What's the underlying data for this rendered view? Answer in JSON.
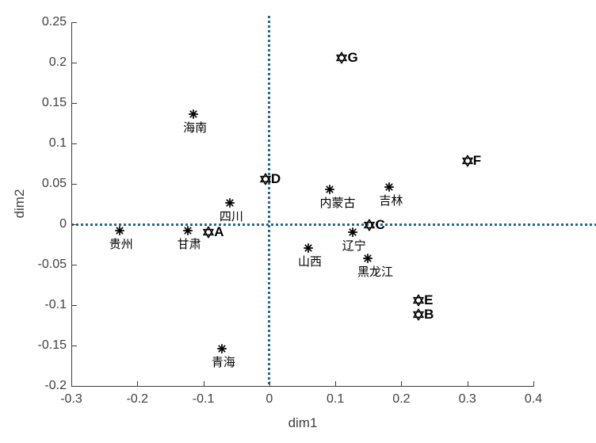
{
  "chart_data": {
    "type": "scatter",
    "title": "",
    "xlabel": "dim1",
    "ylabel": "dim2",
    "xlim": [
      -0.3,
      0.4
    ],
    "ylim": [
      -0.2,
      0.25
    ],
    "x_tick_values": [
      -0.3,
      -0.2,
      -0.1,
      0,
      0.1,
      0.2,
      0.3,
      0.4
    ],
    "x_tick_labels": [
      "-0.3",
      "-0.2",
      "-0.1",
      "0",
      "0.1",
      "0.2",
      "0.3",
      "0.4"
    ],
    "y_tick_values": [
      -0.2,
      -0.15,
      -0.1,
      -0.05,
      0,
      0.05,
      0.1,
      0.15,
      0.2,
      0.25
    ],
    "y_tick_labels": [
      "-0.2",
      "-0.15",
      "-0.1",
      "-0.05",
      "0",
      "0.05",
      "0.1",
      "0.15",
      "0.2",
      "0.25"
    ],
    "grid": false,
    "legend": null,
    "reference_lines": [
      {
        "axis": "vertical",
        "value": 0,
        "style": "dotted"
      },
      {
        "axis": "horizontal",
        "value": 0,
        "style": "dotted"
      }
    ],
    "series": [
      {
        "name": "provinces",
        "marker": "asterisk",
        "label_position": "below",
        "points": [
          {
            "label": "海南",
            "x": -0.115,
            "y": 0.136
          },
          {
            "label": "贵州",
            "x": -0.227,
            "y": -0.008
          },
          {
            "label": "甘肃",
            "x": -0.124,
            "y": -0.008
          },
          {
            "label": "四川",
            "x": -0.06,
            "y": 0.026
          },
          {
            "label": "青海",
            "x": -0.072,
            "y": -0.154
          },
          {
            "label": "内蒙古",
            "x": 0.092,
            "y": 0.043
          },
          {
            "label": "吉林",
            "x": 0.182,
            "y": 0.046
          },
          {
            "label": "辽宁",
            "x": 0.126,
            "y": -0.01
          },
          {
            "label": "山西",
            "x": 0.059,
            "y": -0.029
          },
          {
            "label": "黑龙江",
            "x": 0.149,
            "y": -0.042
          }
        ]
      },
      {
        "name": "letter-points",
        "marker": "hexagram",
        "label_position": "right",
        "points": [
          {
            "label": "A",
            "x": -0.092,
            "y": -0.01
          },
          {
            "label": "B",
            "x": 0.226,
            "y": -0.112
          },
          {
            "label": "C",
            "x": 0.152,
            "y": -0.001
          },
          {
            "label": "D",
            "x": -0.006,
            "y": 0.056
          },
          {
            "label": "E",
            "x": 0.226,
            "y": -0.094
          },
          {
            "label": "F",
            "x": 0.3,
            "y": 0.078
          },
          {
            "label": "G",
            "x": 0.11,
            "y": 0.206
          }
        ]
      }
    ],
    "colors": {
      "reference_line": "#1e6b8d",
      "axis": "#3c3c3c",
      "tick_label": "#3f3f3f",
      "marker": "#000000"
    }
  }
}
